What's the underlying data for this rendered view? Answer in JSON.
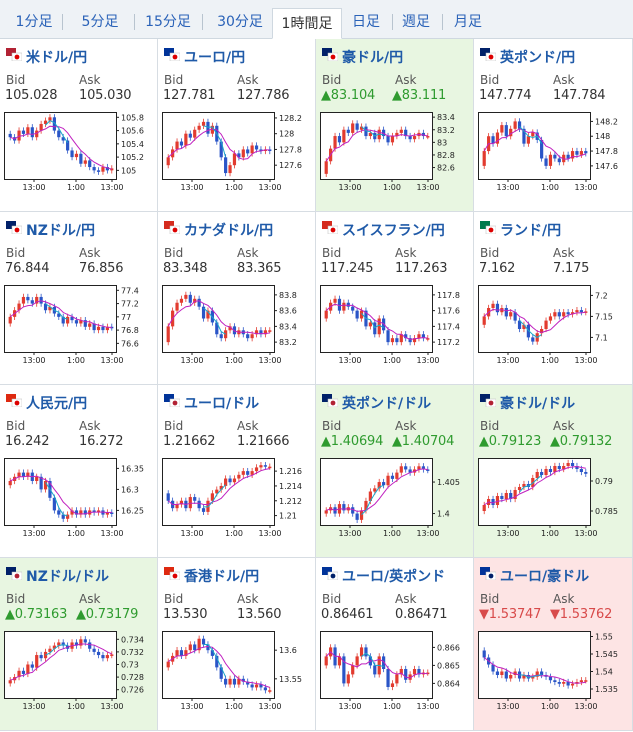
{
  "tabs": [
    {
      "label": "1分足"
    },
    {
      "label": "5分足"
    },
    {
      "label": "15分足"
    },
    {
      "label": "30分足"
    },
    {
      "label": "1時間足",
      "active": true
    },
    {
      "label": "日足"
    },
    {
      "label": "週足"
    },
    {
      "label": "月足"
    }
  ],
  "labels": {
    "bid": "Bid",
    "ask": "Ask"
  },
  "x_ticks": [
    "13:00",
    "1:00",
    "13:00"
  ],
  "colors": {
    "up": "#e23b2f",
    "down": "#2a55c7",
    "ma": "#c021c0",
    "cyan": "#19a7c9",
    "green_bg": "#e8f6e1",
    "red_bg": "#fde4e4"
  },
  "pairs": [
    {
      "name": "米ドル/円",
      "flag": "us-jp-flag",
      "bid": "105.028",
      "ask": "105.030",
      "dir": "none",
      "yticks": [
        "105.8",
        "105.6",
        "105.4",
        "105.2",
        "105"
      ],
      "ylim": [
        104.9,
        105.85
      ],
      "close": [
        105.5,
        105.45,
        105.6,
        105.55,
        105.65,
        105.5,
        105.6,
        105.7,
        105.75,
        105.8,
        105.6,
        105.5,
        105.45,
        105.3,
        105.2,
        105.25,
        105.1,
        105.15,
        105.05,
        105.0,
        104.98,
        105.05,
        105.0,
        105.03
      ]
    },
    {
      "name": "ユーロ/円",
      "flag": "eu-jp-flag",
      "bid": "127.781",
      "ask": "127.786",
      "dir": "none",
      "yticks": [
        "128.2",
        "128",
        "127.8",
        "127.6"
      ],
      "ylim": [
        127.45,
        128.25
      ],
      "close": [
        127.7,
        127.8,
        127.9,
        127.85,
        128.0,
        127.95,
        128.05,
        128.1,
        128.15,
        128.0,
        128.1,
        127.9,
        127.7,
        127.5,
        127.6,
        127.75,
        127.7,
        127.8,
        127.75,
        127.85,
        127.8,
        127.78,
        127.8,
        127.78
      ]
    },
    {
      "name": "豪ドル/円",
      "flag": "au-jp-flag",
      "bid": "▲83.104",
      "ask": "▲83.111",
      "dir": "up",
      "yticks": [
        "83.4",
        "83.2",
        "83",
        "82.8",
        "82.6"
      ],
      "ylim": [
        82.45,
        83.45
      ],
      "close": [
        82.7,
        82.9,
        83.1,
        83.0,
        83.2,
        83.15,
        83.3,
        83.2,
        83.25,
        83.1,
        83.15,
        83.05,
        83.2,
        83.1,
        83.0,
        83.1,
        83.15,
        83.2,
        83.1,
        83.05,
        83.1,
        83.15,
        83.1,
        83.1
      ]
    },
    {
      "name": "英ポンド/円",
      "flag": "gb-jp-flag",
      "bid": "147.774",
      "ask": "147.784",
      "dir": "none",
      "yticks": [
        "148.2",
        "148",
        "147.8",
        "147.6"
      ],
      "ylim": [
        147.45,
        148.3
      ],
      "close": [
        147.8,
        148.0,
        147.9,
        148.05,
        148.15,
        148.0,
        148.1,
        148.2,
        148.1,
        147.9,
        148.0,
        148.05,
        147.95,
        147.7,
        147.6,
        147.75,
        147.7,
        147.65,
        147.75,
        147.7,
        147.8,
        147.75,
        147.8,
        147.77
      ]
    },
    {
      "name": "NZドル/円",
      "flag": "nz-jp-flag",
      "bid": "76.844",
      "ask": "76.856",
      "dir": "none",
      "yticks": [
        "77.4",
        "77.2",
        "77",
        "76.8",
        "76.6"
      ],
      "ylim": [
        76.5,
        77.45
      ],
      "close": [
        77.0,
        77.1,
        77.2,
        77.3,
        77.25,
        77.2,
        77.3,
        77.2,
        77.1,
        77.15,
        77.05,
        77.0,
        76.9,
        77.0,
        76.95,
        76.9,
        76.95,
        76.85,
        76.9,
        76.8,
        76.85,
        76.8,
        76.85,
        76.84
      ]
    },
    {
      "name": "カナダドル/円",
      "flag": "ca-jp-flag",
      "bid": "83.348",
      "ask": "83.365",
      "dir": "none",
      "yticks": [
        "83.8",
        "83.6",
        "83.4",
        "83.2"
      ],
      "ylim": [
        83.1,
        83.9
      ],
      "close": [
        83.4,
        83.6,
        83.7,
        83.75,
        83.8,
        83.7,
        83.75,
        83.65,
        83.5,
        83.6,
        83.45,
        83.3,
        83.25,
        83.35,
        83.4,
        83.3,
        83.35,
        83.3,
        83.25,
        83.3,
        83.35,
        83.3,
        83.35,
        83.35
      ]
    },
    {
      "name": "スイスフラン/円",
      "flag": "ch-jp-flag",
      "bid": "117.245",
      "ask": "117.263",
      "dir": "none",
      "yticks": [
        "117.8",
        "117.6",
        "117.4",
        "117.2"
      ],
      "ylim": [
        117.1,
        117.9
      ],
      "close": [
        117.6,
        117.7,
        117.75,
        117.6,
        117.7,
        117.65,
        117.6,
        117.5,
        117.6,
        117.4,
        117.45,
        117.3,
        117.5,
        117.35,
        117.2,
        117.25,
        117.2,
        117.3,
        117.25,
        117.2,
        117.25,
        117.3,
        117.25,
        117.25
      ]
    },
    {
      "name": "ランド/円",
      "flag": "za-jp-flag",
      "bid": "7.162",
      "ask": "7.175",
      "dir": "none",
      "yticks": [
        "7.2",
        "7.15",
        "7.1"
      ],
      "ylim": [
        7.07,
        7.22
      ],
      "close": [
        7.15,
        7.17,
        7.18,
        7.16,
        7.17,
        7.15,
        7.16,
        7.14,
        7.12,
        7.13,
        7.1,
        7.09,
        7.11,
        7.12,
        7.14,
        7.15,
        7.16,
        7.15,
        7.16,
        7.155,
        7.16,
        7.165,
        7.16,
        7.162
      ]
    },
    {
      "name": "人民元/円",
      "flag": "cn-jp-flag",
      "bid": "16.242",
      "ask": "16.272",
      "dir": "none",
      "yticks": [
        "16.35",
        "16.3",
        "16.25"
      ],
      "ylim": [
        16.22,
        16.37
      ],
      "close": [
        16.32,
        16.33,
        16.34,
        16.33,
        16.34,
        16.32,
        16.33,
        16.3,
        16.32,
        16.28,
        16.25,
        16.24,
        16.23,
        16.24,
        16.25,
        16.24,
        16.25,
        16.24,
        16.25,
        16.245,
        16.25,
        16.24,
        16.245,
        16.242
      ]
    },
    {
      "name": "ユーロ/ドル",
      "flag": "eu-us-flag",
      "bid": "1.21662",
      "ask": "1.21666",
      "dir": "none",
      "yticks": [
        "1.216",
        "1.214",
        "1.212",
        "1.21"
      ],
      "ylim": [
        1.209,
        1.2175
      ],
      "close": [
        1.212,
        1.211,
        1.2115,
        1.212,
        1.211,
        1.2125,
        1.212,
        1.211,
        1.2105,
        1.212,
        1.213,
        1.2135,
        1.214,
        1.215,
        1.2145,
        1.215,
        1.2155,
        1.216,
        1.2155,
        1.216,
        1.2165,
        1.2168,
        1.2166,
        1.2166
      ]
    },
    {
      "name": "英ポンド/ドル",
      "flag": "gb-us-flag",
      "bid": "▲1.40694",
      "ask": "▲1.40704",
      "dir": "up",
      "yticks": [
        "1.405",
        "1.4"
      ],
      "ylim": [
        1.3985,
        1.4085
      ],
      "close": [
        1.4005,
        1.401,
        1.4,
        1.4015,
        1.4005,
        1.401,
        1.4,
        1.399,
        1.4005,
        1.402,
        1.4035,
        1.404,
        1.405,
        1.4045,
        1.406,
        1.4055,
        1.4065,
        1.4075,
        1.407,
        1.4065,
        1.407,
        1.4075,
        1.407,
        1.4069
      ]
    },
    {
      "name": "豪ドル/ドル",
      "flag": "au-us-flag",
      "bid": "▲0.79123",
      "ask": "▲0.79132",
      "dir": "up",
      "yticks": [
        "0.79",
        "0.785"
      ],
      "ylim": [
        0.783,
        0.7935
      ],
      "close": [
        0.786,
        0.787,
        0.786,
        0.7875,
        0.787,
        0.788,
        0.787,
        0.7885,
        0.789,
        0.7895,
        0.789,
        0.7905,
        0.7915,
        0.791,
        0.792,
        0.7915,
        0.7925,
        0.792,
        0.7925,
        0.793,
        0.7925,
        0.792,
        0.7915,
        0.7912
      ]
    },
    {
      "name": "NZドル/ドル",
      "flag": "nz-us-flag",
      "bid": "▲0.73163",
      "ask": "▲0.73179",
      "dir": "up",
      "yticks": [
        "0.734",
        "0.732",
        "0.73",
        "0.728",
        "0.726"
      ],
      "ylim": [
        0.725,
        0.735
      ],
      "close": [
        0.7275,
        0.728,
        0.729,
        0.7285,
        0.73,
        0.7295,
        0.7315,
        0.731,
        0.732,
        0.7325,
        0.733,
        0.7335,
        0.733,
        0.7325,
        0.7335,
        0.733,
        0.734,
        0.7335,
        0.7325,
        0.732,
        0.7315,
        0.731,
        0.7315,
        0.7316
      ]
    },
    {
      "name": "香港ドル/円",
      "flag": "hk-jp-flag",
      "bid": "13.530",
      "ask": "13.560",
      "dir": "none",
      "yticks": [
        "13.6",
        "13.55"
      ],
      "ylim": [
        13.52,
        13.63
      ],
      "close": [
        13.58,
        13.59,
        13.6,
        13.59,
        13.6,
        13.61,
        13.6,
        13.62,
        13.61,
        13.6,
        13.59,
        13.57,
        13.55,
        13.54,
        13.55,
        13.54,
        13.55,
        13.545,
        13.54,
        13.535,
        13.54,
        13.535,
        13.53,
        13.53
      ]
    },
    {
      "name": "ユーロ/英ポンド",
      "flag": "eu-gb-flag",
      "bid": "0.86461",
      "ask": "0.86471",
      "dir": "none",
      "yticks": [
        "0.866",
        "0.865",
        "0.864"
      ],
      "ylim": [
        0.8633,
        0.8668
      ],
      "close": [
        0.8655,
        0.866,
        0.865,
        0.8655,
        0.864,
        0.8645,
        0.865,
        0.8655,
        0.866,
        0.8655,
        0.865,
        0.8645,
        0.8655,
        0.8648,
        0.8638,
        0.864,
        0.8645,
        0.8648,
        0.8642,
        0.8645,
        0.8648,
        0.8645,
        0.8646,
        0.8646
      ]
    },
    {
      "name": "ユーロ/豪ドル",
      "flag": "eu-au-flag",
      "bid": "▼1.53747",
      "ask": "▼1.53762",
      "dir": "down",
      "yticks": [
        "1.55",
        "1.545",
        "1.54",
        "1.535"
      ],
      "ylim": [
        1.533,
        1.551
      ],
      "close": [
        1.544,
        1.542,
        1.54,
        1.539,
        1.54,
        1.538,
        1.539,
        1.54,
        1.538,
        1.539,
        1.538,
        1.5385,
        1.54,
        1.539,
        1.5385,
        1.5375,
        1.537,
        1.5365,
        1.537,
        1.536,
        1.5365,
        1.537,
        1.5375,
        1.5375
      ]
    }
  ]
}
